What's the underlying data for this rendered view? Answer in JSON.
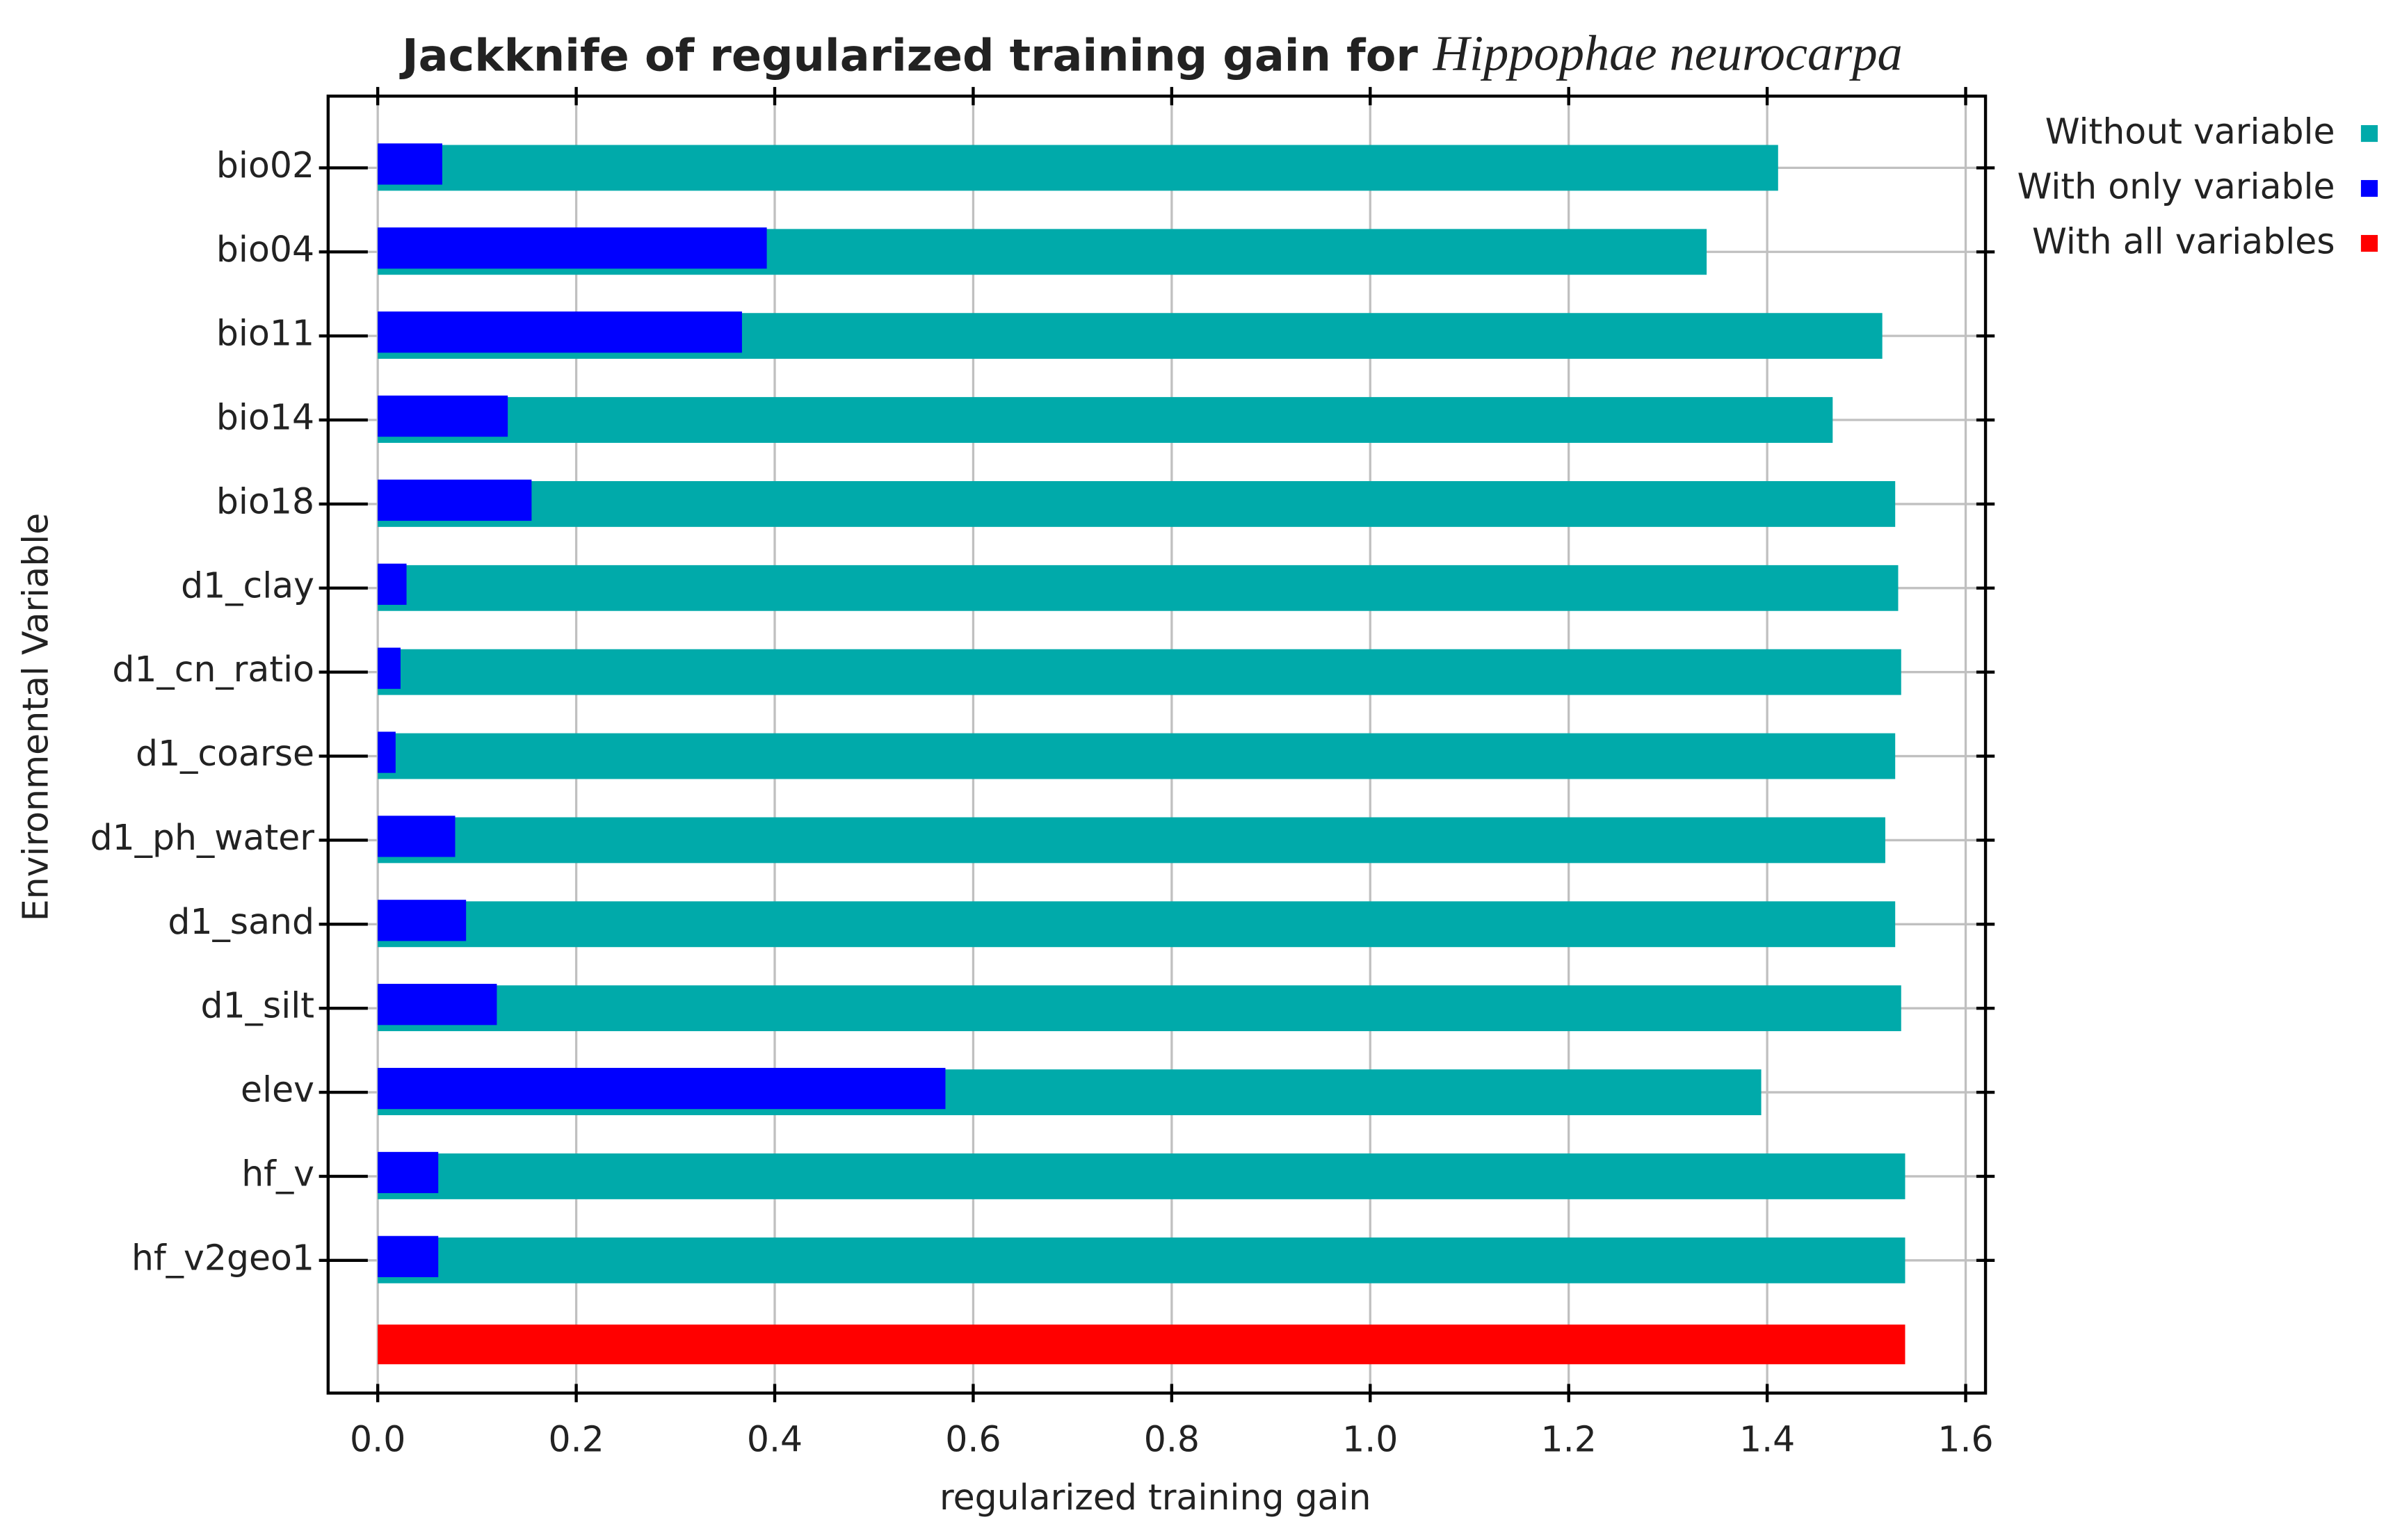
{
  "chart_data": {
    "type": "bar",
    "orientation": "horizontal",
    "title": "Jackknife of regularized training gain for",
    "title_species": "Hippophae neurocarpa",
    "xlabel": "regularized training gain",
    "ylabel": "Environmental Variable",
    "categories": [
      "bio02",
      "bio04",
      "bio11",
      "bio14",
      "bio18",
      "d1_clay",
      "d1_cn_ratio",
      "d1_coarse",
      "d1_ph_water",
      "d1_sand",
      "d1_silt",
      "elev",
      "hf_v",
      "hf_v2geo1",
      null
    ],
    "series": [
      {
        "name": "Without variable",
        "color": "#00aaaa",
        "values": [
          1.411,
          1.339,
          1.516,
          1.466,
          1.529,
          1.532,
          1.535,
          1.529,
          1.519,
          1.529,
          1.535,
          1.394,
          1.539,
          1.539,
          null
        ]
      },
      {
        "name": "With only variable",
        "color": "#0000ff",
        "values": [
          0.065,
          0.392,
          0.367,
          0.131,
          0.155,
          0.029,
          0.023,
          0.018,
          0.078,
          0.089,
          0.12,
          0.572,
          0.061,
          0.061,
          null
        ]
      },
      {
        "name": "With all variables",
        "color": "#ff0000",
        "values": [
          null,
          null,
          null,
          null,
          null,
          null,
          null,
          null,
          null,
          null,
          null,
          null,
          null,
          null,
          1.539
        ]
      }
    ],
    "xlim": [
      -0.05,
      1.62
    ],
    "xticks": [
      {
        "value": 0,
        "label": "0.0"
      },
      0.2,
      0.4,
      0.6,
      0.8,
      {
        "value": 1,
        "label": "1.0"
      },
      1.2,
      1.4,
      1.6
    ],
    "grid": true,
    "legend": "right"
  }
}
